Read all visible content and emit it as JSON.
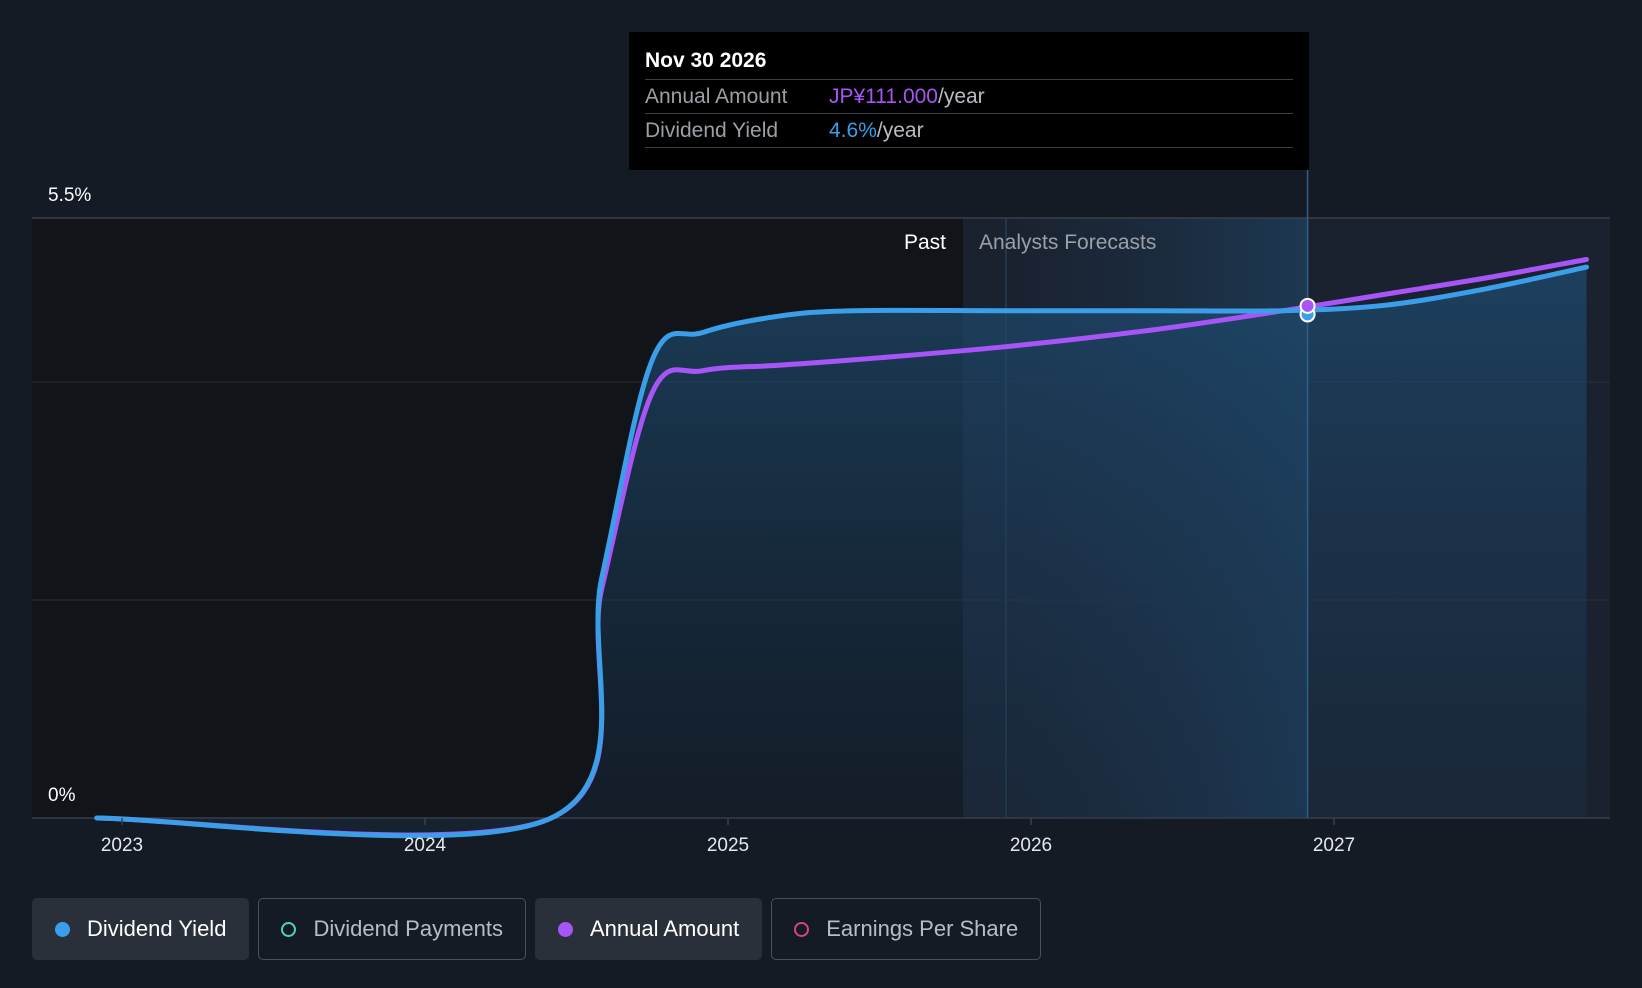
{
  "chart_data": {
    "type": "line",
    "x_ticks": [
      "2023",
      "2024",
      "2025",
      "2026",
      "2027"
    ],
    "y_ticks": [
      "5.5%",
      "0%"
    ],
    "ylim": [
      0,
      5.5
    ],
    "period_labels": {
      "past": "Past",
      "forecast": "Analysts Forecasts"
    },
    "series": [
      {
        "name": "Dividend Yield",
        "color": "#3a9fe8",
        "points": [
          [
            "2022-12",
            0.0
          ],
          [
            "2024-06",
            0.0
          ],
          [
            "2024-08",
            2.2
          ],
          [
            "2024-10",
            4.2
          ],
          [
            "2024-12",
            4.45
          ],
          [
            "2025-03",
            4.6
          ],
          [
            "2025-06",
            4.65
          ],
          [
            "2025-12",
            4.65
          ],
          [
            "2026-06",
            4.65
          ],
          [
            "2026-11",
            4.65
          ],
          [
            "2027-03",
            4.7
          ],
          [
            "2027-07",
            4.85
          ],
          [
            "2027-11",
            5.05
          ]
        ]
      },
      {
        "name": "Annual Amount",
        "color": "#a855f7",
        "points": [
          [
            "2022-12",
            0.0
          ],
          [
            "2024-06",
            0.0
          ],
          [
            "2024-08",
            2.1
          ],
          [
            "2024-10",
            3.9
          ],
          [
            "2024-12",
            4.1
          ],
          [
            "2025-03",
            4.15
          ],
          [
            "2025-06",
            4.2
          ],
          [
            "2025-12",
            4.32
          ],
          [
            "2026-06",
            4.48
          ],
          [
            "2026-11",
            4.65
          ],
          [
            "2027-03",
            4.8
          ],
          [
            "2027-07",
            4.95
          ],
          [
            "2027-11",
            5.12
          ]
        ]
      }
    ],
    "highlight": {
      "date": "2026-11-30"
    }
  },
  "tooltip": {
    "date": "Nov 30 2026",
    "rows": [
      {
        "label": "Annual Amount",
        "value": "JP¥111.000",
        "unit": "/year"
      },
      {
        "label": "Dividend Yield",
        "value": "4.6%",
        "unit": "/year"
      }
    ]
  },
  "legend": [
    {
      "label": "Dividend Yield",
      "color": "#3a9fe8",
      "active": true,
      "filled": true
    },
    {
      "label": "Dividend Payments",
      "color": "#4fd1c5",
      "active": false,
      "filled": false
    },
    {
      "label": "Annual Amount",
      "color": "#a855f7",
      "active": true,
      "filled": true
    },
    {
      "label": "Earnings Per Share",
      "color": "#d6457a",
      "active": false,
      "filled": false
    }
  ]
}
